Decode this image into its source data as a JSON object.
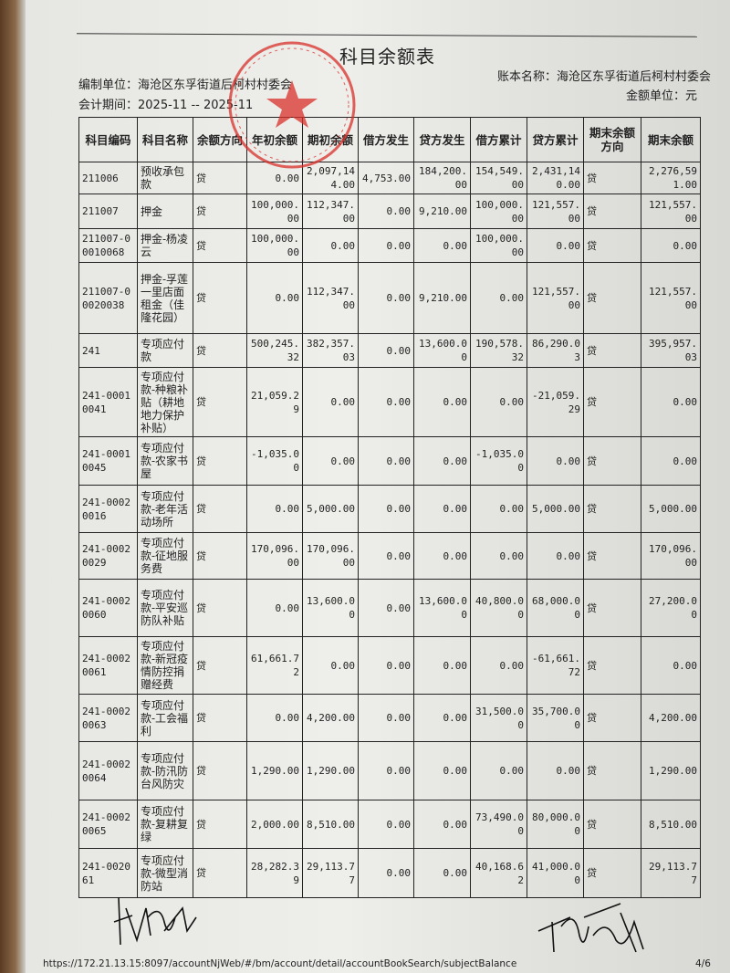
{
  "document": {
    "title": "科目余额表",
    "compiler_label": "编制单位：海沧区东孚街道后柯村村委会",
    "period_label": "会计期间：2025-11 -- 2025-11",
    "book_label": "账本名称：海沧区东孚街道后柯村村委会",
    "unit_label": "金额单位：元",
    "stamp_text": "厦门市海沧区东孚街道后柯村村民委员会",
    "stamp_color": "#d9302a"
  },
  "table": {
    "headers": [
      "科目编码",
      "科目名称",
      "余额方向",
      "年初余额",
      "期初余额",
      "借方发生",
      "贷方发生",
      "借方累计",
      "贷方累计",
      "期末余额方向",
      "期末余额"
    ],
    "rows": [
      [
        "211006",
        "预收承包款",
        "贷",
        "0.00",
        "2,097,144.00",
        "4,753.00",
        "184,200.00",
        "154,549.00",
        "2,431,140.00",
        "贷",
        "2,276,591.00"
      ],
      [
        "211007",
        "押金",
        "贷",
        "100,000.00",
        "112,347.00",
        "0.00",
        "9,210.00",
        "100,000.00",
        "121,557.00",
        "贷",
        "121,557.00"
      ],
      [
        "211007-00010068",
        "押金-杨凌云",
        "贷",
        "100,000.00",
        "0.00",
        "0.00",
        "0.00",
        "100,000.00",
        "0.00",
        "贷",
        "0.00"
      ],
      [
        "211007-00020038",
        "押金-孚莲一里店面租金（佳隆花园）",
        "贷",
        "0.00",
        "112,347.00",
        "0.00",
        "9,210.00",
        "0.00",
        "121,557.00",
        "贷",
        "121,557.00"
      ],
      [
        "241",
        "专项应付款",
        "贷",
        "500,245.32",
        "382,357.03",
        "0.00",
        "13,600.00",
        "190,578.32",
        "86,290.03",
        "贷",
        "395,957.03"
      ],
      [
        "241-00010041",
        "专项应付款-种粮补贴（耕地地力保护补贴）",
        "贷",
        "21,059.29",
        "0.00",
        "0.00",
        "0.00",
        "0.00",
        "-21,059.29",
        "贷",
        "0.00"
      ],
      [
        "241-00010045",
        "专项应付款-农家书屋",
        "贷",
        "-1,035.00",
        "0.00",
        "0.00",
        "0.00",
        "-1,035.00",
        "0.00",
        "贷",
        "0.00"
      ],
      [
        "241-00020016",
        "专项应付款-老年活动场所",
        "贷",
        "0.00",
        "5,000.00",
        "0.00",
        "0.00",
        "0.00",
        "5,000.00",
        "贷",
        "5,000.00"
      ],
      [
        "241-00020029",
        "专项应付款-征地服务费",
        "贷",
        "170,096.00",
        "170,096.00",
        "0.00",
        "0.00",
        "0.00",
        "0.00",
        "贷",
        "170,096.00"
      ],
      [
        "241-00020060",
        "专项应付款-平安巡防队补贴",
        "贷",
        "0.00",
        "13,600.00",
        "0.00",
        "13,600.00",
        "40,800.00",
        "68,000.00",
        "贷",
        "27,200.00"
      ],
      [
        "241-00020061",
        "专项应付款-新冠疫情防控捐赠经费",
        "贷",
        "61,661.72",
        "0.00",
        "0.00",
        "0.00",
        "0.00",
        "-61,661.72",
        "贷",
        "0.00"
      ],
      [
        "241-00020063",
        "专项应付款-工会福利",
        "贷",
        "0.00",
        "4,200.00",
        "0.00",
        "0.00",
        "31,500.00",
        "35,700.00",
        "贷",
        "4,200.00"
      ],
      [
        "241-00020064",
        "专项应付款-防汛防台风防灾",
        "贷",
        "1,290.00",
        "1,290.00",
        "0.00",
        "0.00",
        "0.00",
        "0.00",
        "贷",
        "1,290.00"
      ],
      [
        "241-00020065",
        "专项应付款-复耕复绿",
        "贷",
        "2,000.00",
        "8,510.00",
        "0.00",
        "0.00",
        "73,490.00",
        "80,000.00",
        "贷",
        "8,510.00"
      ],
      [
        "241-002061",
        "专项应付款-微型消防站",
        "贷",
        "28,282.39",
        "29,113.77",
        "0.00",
        "0.00",
        "40,168.62",
        "41,000.00",
        "贷",
        "29,113.77"
      ]
    ]
  },
  "footer": {
    "url": "https://172.21.13.15:8097/accountNjWeb/#/bm/account/detail/accountBookSearch/subjectBalance",
    "page": "4/6"
  }
}
